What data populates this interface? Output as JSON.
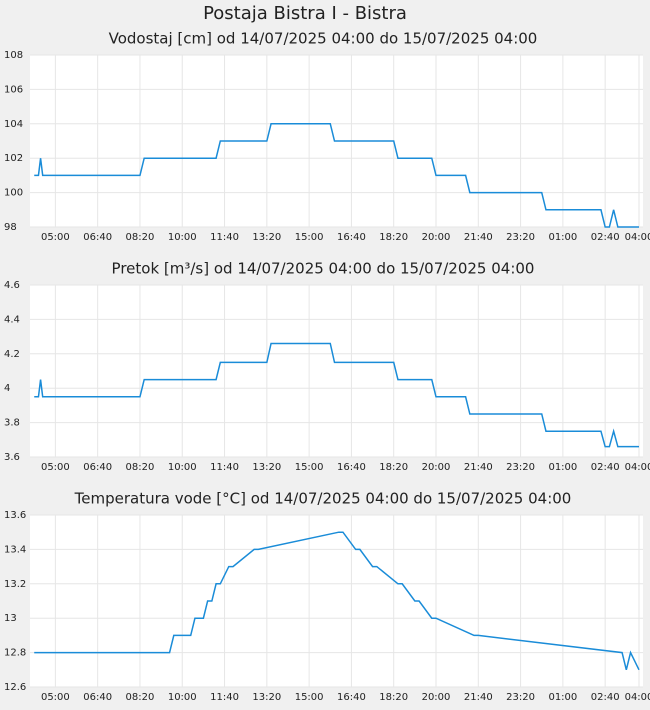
{
  "page_title": "Postaja Bistra I - Bistra",
  "chart_data": [
    {
      "type": "line",
      "title": "Vodostaj [cm] od 14/07/2025 04:00 do 15/07/2025 04:00",
      "color": "#1a8cd8",
      "grid": true,
      "xlim": [
        "04:00",
        "04:00"
      ],
      "xticks": [
        "05:00",
        "06:40",
        "08:20",
        "10:00",
        "11:40",
        "13:20",
        "15:00",
        "16:40",
        "18:20",
        "20:00",
        "21:40",
        "23:20",
        "01:00",
        "02:40",
        "04:00"
      ],
      "ylim": [
        98,
        108
      ],
      "yticks": [
        98,
        100,
        102,
        104,
        106,
        108
      ],
      "x": [
        "04:10",
        "04:20",
        "04:25",
        "04:30",
        "08:20",
        "08:30",
        "11:20",
        "11:30",
        "13:20",
        "13:30",
        "15:50",
        "16:00",
        "18:20",
        "18:30",
        "19:50",
        "20:00",
        "21:10",
        "21:20",
        "00:10",
        "00:20",
        "02:30",
        "02:40",
        "02:50",
        "03:00",
        "03:10",
        "04:00"
      ],
      "values": [
        101,
        101,
        102,
        101,
        101,
        102,
        102,
        103,
        103,
        104,
        104,
        103,
        103,
        102,
        102,
        101,
        101,
        100,
        100,
        99,
        99,
        98,
        98,
        99,
        98,
        98
      ]
    },
    {
      "type": "line",
      "title": "Pretok [m³/s] od 14/07/2025 04:00 do 15/07/2025 04:00",
      "color": "#1a8cd8",
      "grid": true,
      "xlim": [
        "04:00",
        "04:00"
      ],
      "xticks": [
        "05:00",
        "06:40",
        "08:20",
        "10:00",
        "11:40",
        "13:20",
        "15:00",
        "16:40",
        "18:20",
        "20:00",
        "21:40",
        "23:20",
        "01:00",
        "02:40",
        "04:00"
      ],
      "ylim": [
        3.6,
        4.6
      ],
      "yticks": [
        3.6,
        3.8,
        4,
        4.2,
        4.4,
        4.6
      ],
      "x": [
        "04:10",
        "04:20",
        "04:25",
        "04:30",
        "08:20",
        "08:30",
        "11:20",
        "11:30",
        "13:20",
        "13:30",
        "15:50",
        "16:00",
        "18:20",
        "18:30",
        "19:50",
        "20:00",
        "21:10",
        "21:20",
        "00:10",
        "00:20",
        "02:30",
        "02:40",
        "02:50",
        "03:00",
        "03:10",
        "04:00"
      ],
      "values": [
        3.95,
        3.95,
        4.05,
        3.95,
        3.95,
        4.05,
        4.05,
        4.15,
        4.15,
        4.26,
        4.26,
        4.15,
        4.15,
        4.05,
        4.05,
        3.95,
        3.95,
        3.85,
        3.85,
        3.75,
        3.75,
        3.66,
        3.66,
        3.75,
        3.66,
        3.66
      ]
    },
    {
      "type": "line",
      "title": "Temperatura vode [°C] od 14/07/2025 04:00 do 15/07/2025 04:00",
      "color": "#1a8cd8",
      "grid": true,
      "xlim": [
        "04:00",
        "04:00"
      ],
      "xticks": [
        "05:00",
        "06:40",
        "08:20",
        "10:00",
        "11:40",
        "13:20",
        "15:00",
        "16:40",
        "18:20",
        "20:00",
        "21:40",
        "23:20",
        "01:00",
        "02:40",
        "04:00"
      ],
      "ylim": [
        12.6,
        13.6
      ],
      "yticks": [
        12.6,
        12.8,
        13,
        13.2,
        13.4,
        13.6
      ],
      "x": [
        "04:10",
        "09:30",
        "09:40",
        "10:20",
        "10:30",
        "10:50",
        "11:00",
        "11:10",
        "11:20",
        "11:30",
        "11:50",
        "12:00",
        "12:50",
        "13:00",
        "16:10",
        "16:20",
        "16:50",
        "17:00",
        "17:30",
        "17:40",
        "18:30",
        "18:40",
        "19:10",
        "19:20",
        "19:50",
        "20:00",
        "21:30",
        "21:40",
        "03:20",
        "03:30",
        "03:40",
        "04:00"
      ],
      "values": [
        12.8,
        12.8,
        12.9,
        12.9,
        13,
        13,
        13.1,
        13.1,
        13.2,
        13.2,
        13.3,
        13.3,
        13.4,
        13.4,
        13.5,
        13.5,
        13.4,
        13.4,
        13.3,
        13.3,
        13.2,
        13.2,
        13.1,
        13.1,
        13,
        13,
        12.9,
        12.9,
        12.8,
        12.7,
        12.8,
        12.7
      ]
    }
  ]
}
